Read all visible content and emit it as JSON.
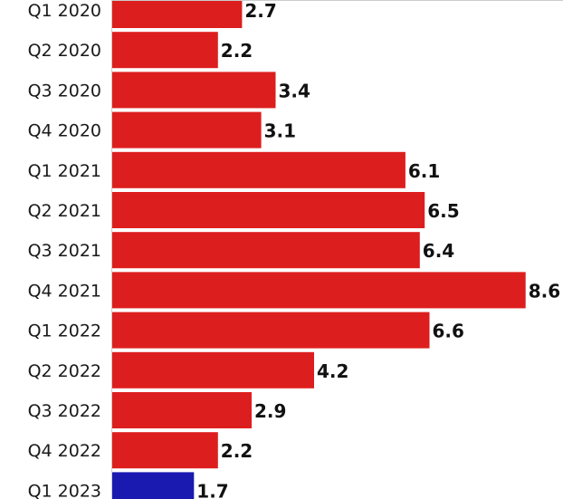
{
  "chart_data": {
    "type": "bar",
    "orientation": "horizontal",
    "categories": [
      "Q1 2020",
      "Q2 2020",
      "Q3 2020",
      "Q4 2020",
      "Q1 2021",
      "Q2 2021",
      "Q3 2021",
      "Q4 2021",
      "Q1 2022",
      "Q2 2022",
      "Q3 2022",
      "Q4 2022",
      "Q1 2023"
    ],
    "values": [
      2.7,
      2.2,
      3.4,
      3.1,
      6.1,
      6.5,
      6.4,
      8.6,
      6.6,
      4.2,
      2.9,
      2.2,
      1.7
    ],
    "value_labels": [
      "2.7",
      "2.2",
      "3.4",
      "3.1",
      "6.1",
      "6.5",
      "6.4",
      "8.6",
      "6.6",
      "4.2",
      "2.9",
      "2.2",
      "1.7"
    ],
    "bar_colors": [
      "#dd1e1e",
      "#dd1e1e",
      "#dd1e1e",
      "#dd1e1e",
      "#dd1e1e",
      "#dd1e1e",
      "#dd1e1e",
      "#dd1e1e",
      "#dd1e1e",
      "#dd1e1e",
      "#dd1e1e",
      "#dd1e1e",
      "#1a1ab0"
    ],
    "xlim": [
      0,
      10
    ],
    "grid": false,
    "legend": "none",
    "title": "",
    "xlabel": "",
    "ylabel": ""
  }
}
